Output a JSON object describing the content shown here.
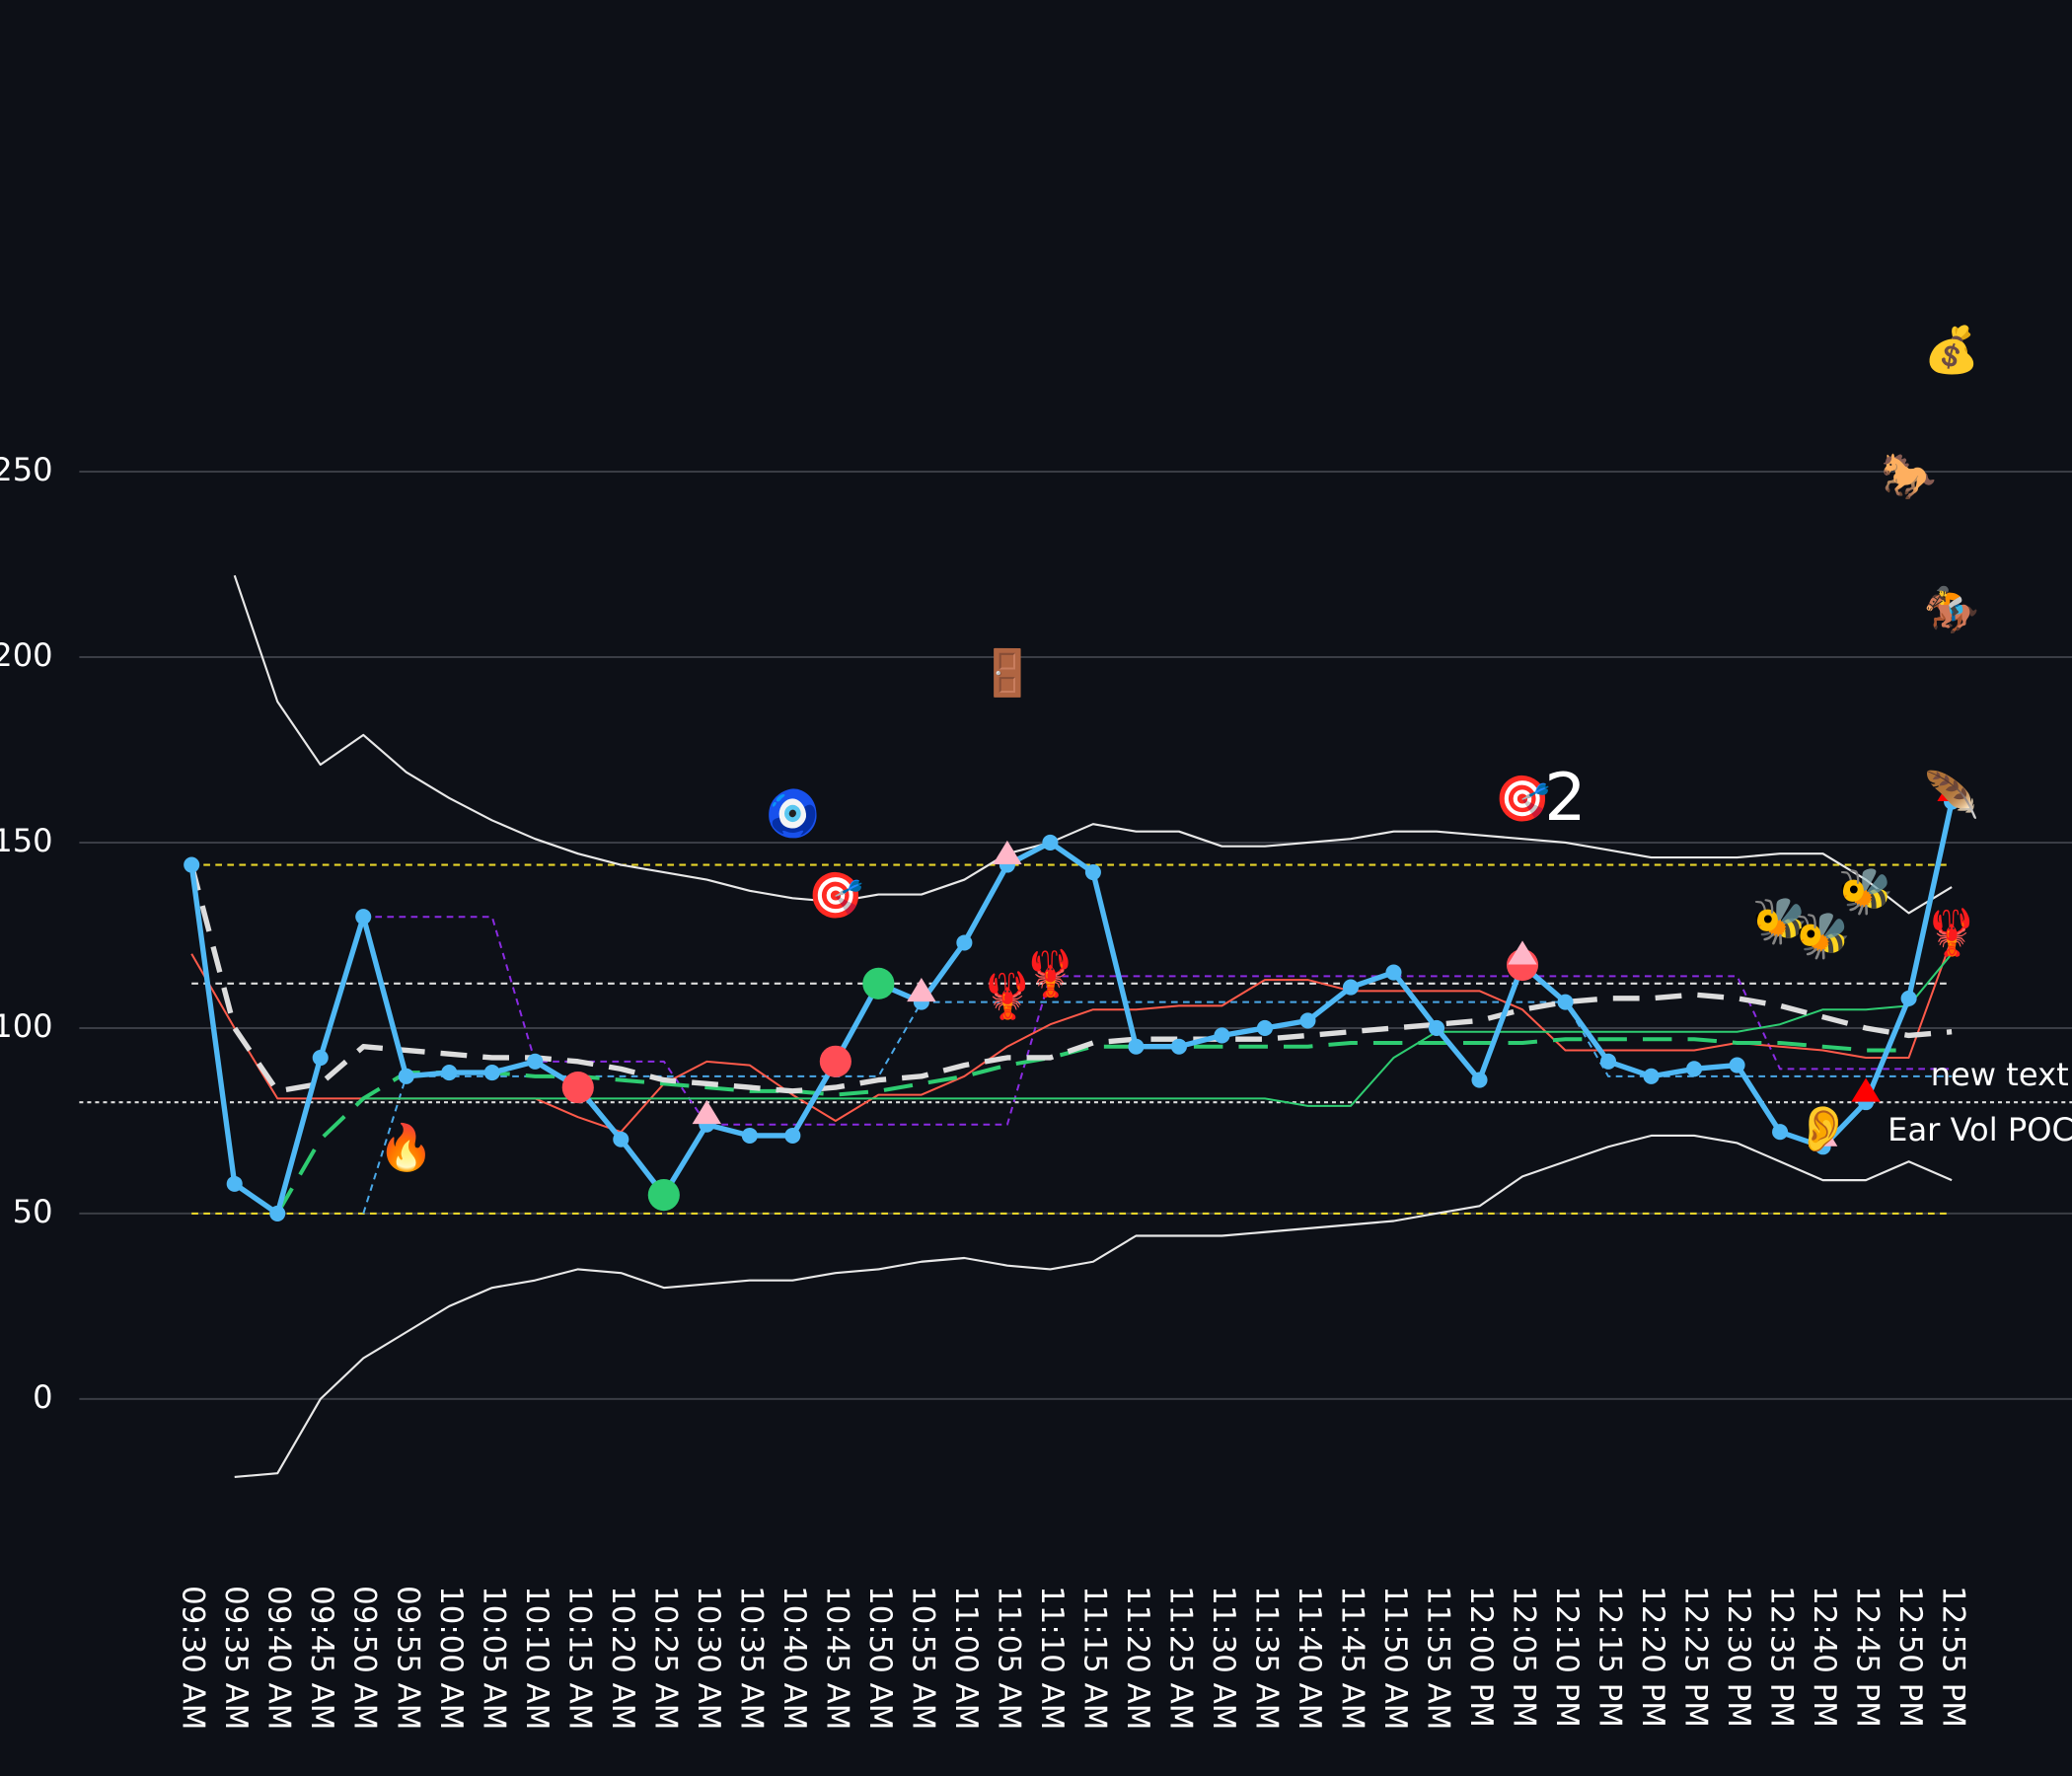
{
  "chart_data": {
    "type": "line",
    "background": "#0d1017",
    "categories": [
      "09:30 AM",
      "09:35 AM",
      "09:40 AM",
      "09:45 AM",
      "09:50 AM",
      "09:55 AM",
      "10:00 AM",
      "10:05 AM",
      "10:10 AM",
      "10:15 AM",
      "10:20 AM",
      "10:25 AM",
      "10:30 AM",
      "10:35 AM",
      "10:40 AM",
      "10:45 AM",
      "10:50 AM",
      "10:55 AM",
      "11:00 AM",
      "11:05 AM",
      "11:10 AM",
      "11:15 AM",
      "11:20 AM",
      "11:25 AM",
      "11:30 AM",
      "11:35 AM",
      "11:40 AM",
      "11:45 AM",
      "11:50 AM",
      "11:55 AM",
      "12:00 PM",
      "12:05 PM",
      "12:10 PM",
      "12:15 PM",
      "12:20 PM",
      "12:25 PM",
      "12:30 PM",
      "12:35 PM",
      "12:40 PM",
      "12:45 PM",
      "12:50 PM",
      "12:55 PM"
    ],
    "ylim": [
      -40,
      375
    ],
    "yticks": [
      0,
      50,
      100,
      150,
      200,
      250
    ],
    "grid": true,
    "series": [
      {
        "color": "#e8e8e8",
        "width": 1.6,
        "dash": "none",
        "values": [
          null,
          222,
          188,
          171,
          179,
          169,
          162,
          156,
          151,
          147,
          144,
          142,
          140,
          137,
          135,
          134,
          136,
          136,
          140,
          147,
          150,
          155,
          153,
          153,
          149,
          149,
          150,
          151,
          153,
          153,
          152,
          151,
          150,
          148,
          146,
          146,
          146,
          147,
          147,
          140,
          131,
          138
        ]
      },
      {
        "color": "#e8e8e8",
        "width": 1.6,
        "dash": "none",
        "values": [
          null,
          -21,
          -20,
          0,
          11,
          18,
          25,
          30,
          32,
          35,
          34,
          30,
          31,
          32,
          32,
          34,
          35,
          37,
          38,
          36,
          35,
          37,
          44,
          44,
          44,
          45,
          46,
          47,
          48,
          50,
          52,
          60,
          64,
          68,
          71,
          71,
          69,
          64,
          59,
          59,
          64,
          59
        ]
      },
      {
        "color": "#8a2be2",
        "width": 1.5,
        "dash": "5 4",
        "values": [
          null,
          null,
          null,
          null,
          130,
          130,
          130,
          130,
          91,
          91,
          91,
          91,
          74,
          74,
          74,
          74,
          74,
          74,
          74,
          74,
          114,
          114,
          114,
          114,
          114,
          114,
          114,
          114,
          114,
          114,
          114,
          114,
          114,
          114,
          114,
          114,
          114,
          89,
          89,
          89,
          89,
          89
        ]
      },
      {
        "color": "#4aa8e8",
        "width": 1.5,
        "dash": "5 4",
        "values": [
          null,
          null,
          null,
          null,
          50,
          87,
          87,
          87,
          87,
          87,
          87,
          87,
          87,
          87,
          87,
          87,
          87,
          107,
          107,
          107,
          107,
          107,
          107,
          107,
          107,
          107,
          107,
          107,
          107,
          107,
          107,
          107,
          107,
          87,
          87,
          87,
          87,
          87,
          87,
          87,
          87,
          87
        ]
      },
      {
        "color": "#ff5a4a",
        "width": 1.5,
        "dash": "none",
        "values": [
          120,
          100,
          81,
          81,
          81,
          81,
          81,
          81,
          81,
          76,
          72,
          85,
          91,
          90,
          82,
          75,
          82,
          82,
          87,
          95,
          101,
          105,
          105,
          106,
          106,
          113,
          113,
          110,
          110,
          110,
          110,
          105,
          94,
          94,
          94,
          94,
          96,
          95,
          94,
          92,
          92,
          124
        ]
      },
      {
        "color": "#2ecc71",
        "width": 1.5,
        "dash": "none",
        "values": [
          null,
          null,
          null,
          null,
          81,
          81,
          81,
          81,
          81,
          81,
          81,
          81,
          81,
          81,
          81,
          81,
          81,
          81,
          81,
          81,
          81,
          81,
          81,
          81,
          81,
          81,
          79,
          79,
          92,
          99,
          99,
          99,
          99,
          99,
          99,
          99,
          99,
          101,
          105,
          105,
          106,
          120
        ]
      },
      {
        "color": "#2ecc71",
        "width": 3,
        "dash": "22 12",
        "values": [
          null,
          null,
          50,
          70,
          81,
          88,
          88,
          88,
          87,
          87,
          86,
          85,
          84,
          83,
          83,
          82,
          83,
          85,
          87,
          90,
          92,
          95,
          95,
          95,
          95,
          95,
          95,
          96,
          96,
          96,
          96,
          96,
          97,
          97,
          97,
          97,
          96,
          96,
          95,
          94,
          94,
          null
        ]
      },
      {
        "color": "#dddddd",
        "width": 4,
        "dash": "20 12",
        "values": [
          144,
          100,
          83,
          85,
          95,
          94,
          93,
          92,
          92,
          91,
          89,
          86,
          85,
          84,
          83,
          84,
          86,
          87,
          90,
          92,
          92,
          96,
          97,
          97,
          97,
          97,
          98,
          99,
          100,
          101,
          102,
          105,
          107,
          108,
          108,
          109,
          108,
          106,
          103,
          100,
          98,
          99
        ]
      },
      {
        "color": "#4fb8f5",
        "width": 4,
        "dash": "none",
        "dots": true,
        "values": [
          144,
          58,
          50,
          92,
          130,
          87,
          88,
          88,
          91,
          84,
          70,
          55,
          74,
          71,
          71,
          91,
          112,
          107,
          123,
          144,
          150,
          142,
          95,
          95,
          98,
          100,
          102,
          111,
          115,
          100,
          86,
          117,
          107,
          91,
          87,
          89,
          90,
          72,
          68,
          80,
          108,
          161
        ]
      }
    ],
    "reference_lines": [
      {
        "value": 144,
        "color": "#e6d42a",
        "dash": "5 4",
        "extent": "data"
      },
      {
        "value": 50,
        "color": "#e6d42a",
        "dash": "5 4",
        "extent": "data"
      },
      {
        "value": 112,
        "color": "#dddddd",
        "dash": "5 4",
        "extent": "data"
      },
      {
        "value": 80,
        "color": "#dddddd",
        "dash": "3 3",
        "extent": "full"
      }
    ],
    "markers": [
      {
        "x": "10:15 AM",
        "y": 84,
        "shape": "circle",
        "color": "#ff4d55"
      },
      {
        "x": "10:45 AM",
        "y": 91,
        "shape": "circle",
        "color": "#ff4d55"
      },
      {
        "x": "12:05 PM",
        "y": 117,
        "shape": "circle",
        "color": "#ff4d55"
      },
      {
        "x": "10:25 AM",
        "y": 55,
        "shape": "circle",
        "color": "#2ecc71"
      },
      {
        "x": "10:50 AM",
        "y": 112,
        "shape": "circle",
        "color": "#2ecc71"
      },
      {
        "x": "10:30 AM",
        "y": 77,
        "shape": "triangle",
        "color": "#ffb6c8"
      },
      {
        "x": "10:55 AM",
        "y": 110,
        "shape": "triangle",
        "color": "#ffb6c8"
      },
      {
        "x": "11:05 AM",
        "y": 147,
        "shape": "triangle",
        "color": "#ffb6c8"
      },
      {
        "x": "12:05 PM",
        "y": 120,
        "shape": "triangle",
        "color": "#ffb6c8"
      },
      {
        "x": "12:40 PM",
        "y": 71,
        "shape": "triangle",
        "color": "#ffb6c8"
      },
      {
        "x": "12:45 PM",
        "y": 83,
        "shape": "triangle",
        "color": "#ff0000"
      },
      {
        "x": "12:55 PM",
        "y": 164,
        "shape": "triangle",
        "color": "#ff0000"
      }
    ],
    "annotations": [
      {
        "x": "09:55 AM",
        "y": 67,
        "text": "🔥"
      },
      {
        "x": "10:40 AM",
        "y": 157,
        "text": "🧿"
      },
      {
        "x": "10:45 AM",
        "y": 135,
        "text": "🎯"
      },
      {
        "x": "11:05 AM",
        "y": 195,
        "text": "🚪"
      },
      {
        "x": "11:05 AM",
        "y": 108,
        "text": "🦞"
      },
      {
        "x": "11:10 AM",
        "y": 114,
        "text": "🦞"
      },
      {
        "x": "12:05 PM",
        "y": 161,
        "text": "🎯"
      },
      {
        "x": "12:10 PM",
        "y": 161,
        "text": "2",
        "color": "#ffffff"
      },
      {
        "x": "12:35 PM",
        "y": 128,
        "text": "🐝"
      },
      {
        "x": "12:40 PM",
        "y": 124,
        "text": "🐝"
      },
      {
        "x": "12:45 PM",
        "y": 136,
        "text": "🐝"
      },
      {
        "x": "12:55 PM",
        "y": 162,
        "text": "🪶"
      },
      {
        "x": "12:50 PM",
        "y": 248,
        "text": "🐎"
      },
      {
        "x": "12:55 PM",
        "y": 212,
        "text": "🏇"
      },
      {
        "x": "12:55 PM",
        "y": 282,
        "text": "💰"
      },
      {
        "x": "12:55 PM",
        "y": 125,
        "text": "🦞"
      },
      {
        "x": "12:40 PM",
        "y": 72,
        "text": "👂"
      },
      {
        "x": "12:50 PM",
        "y": 72,
        "text": "Ear Vol POC",
        "color": "#9a9a9a"
      },
      {
        "x": "12:55 PM",
        "y": 87,
        "text": "new text",
        "color": "#ff2d95"
      }
    ]
  }
}
